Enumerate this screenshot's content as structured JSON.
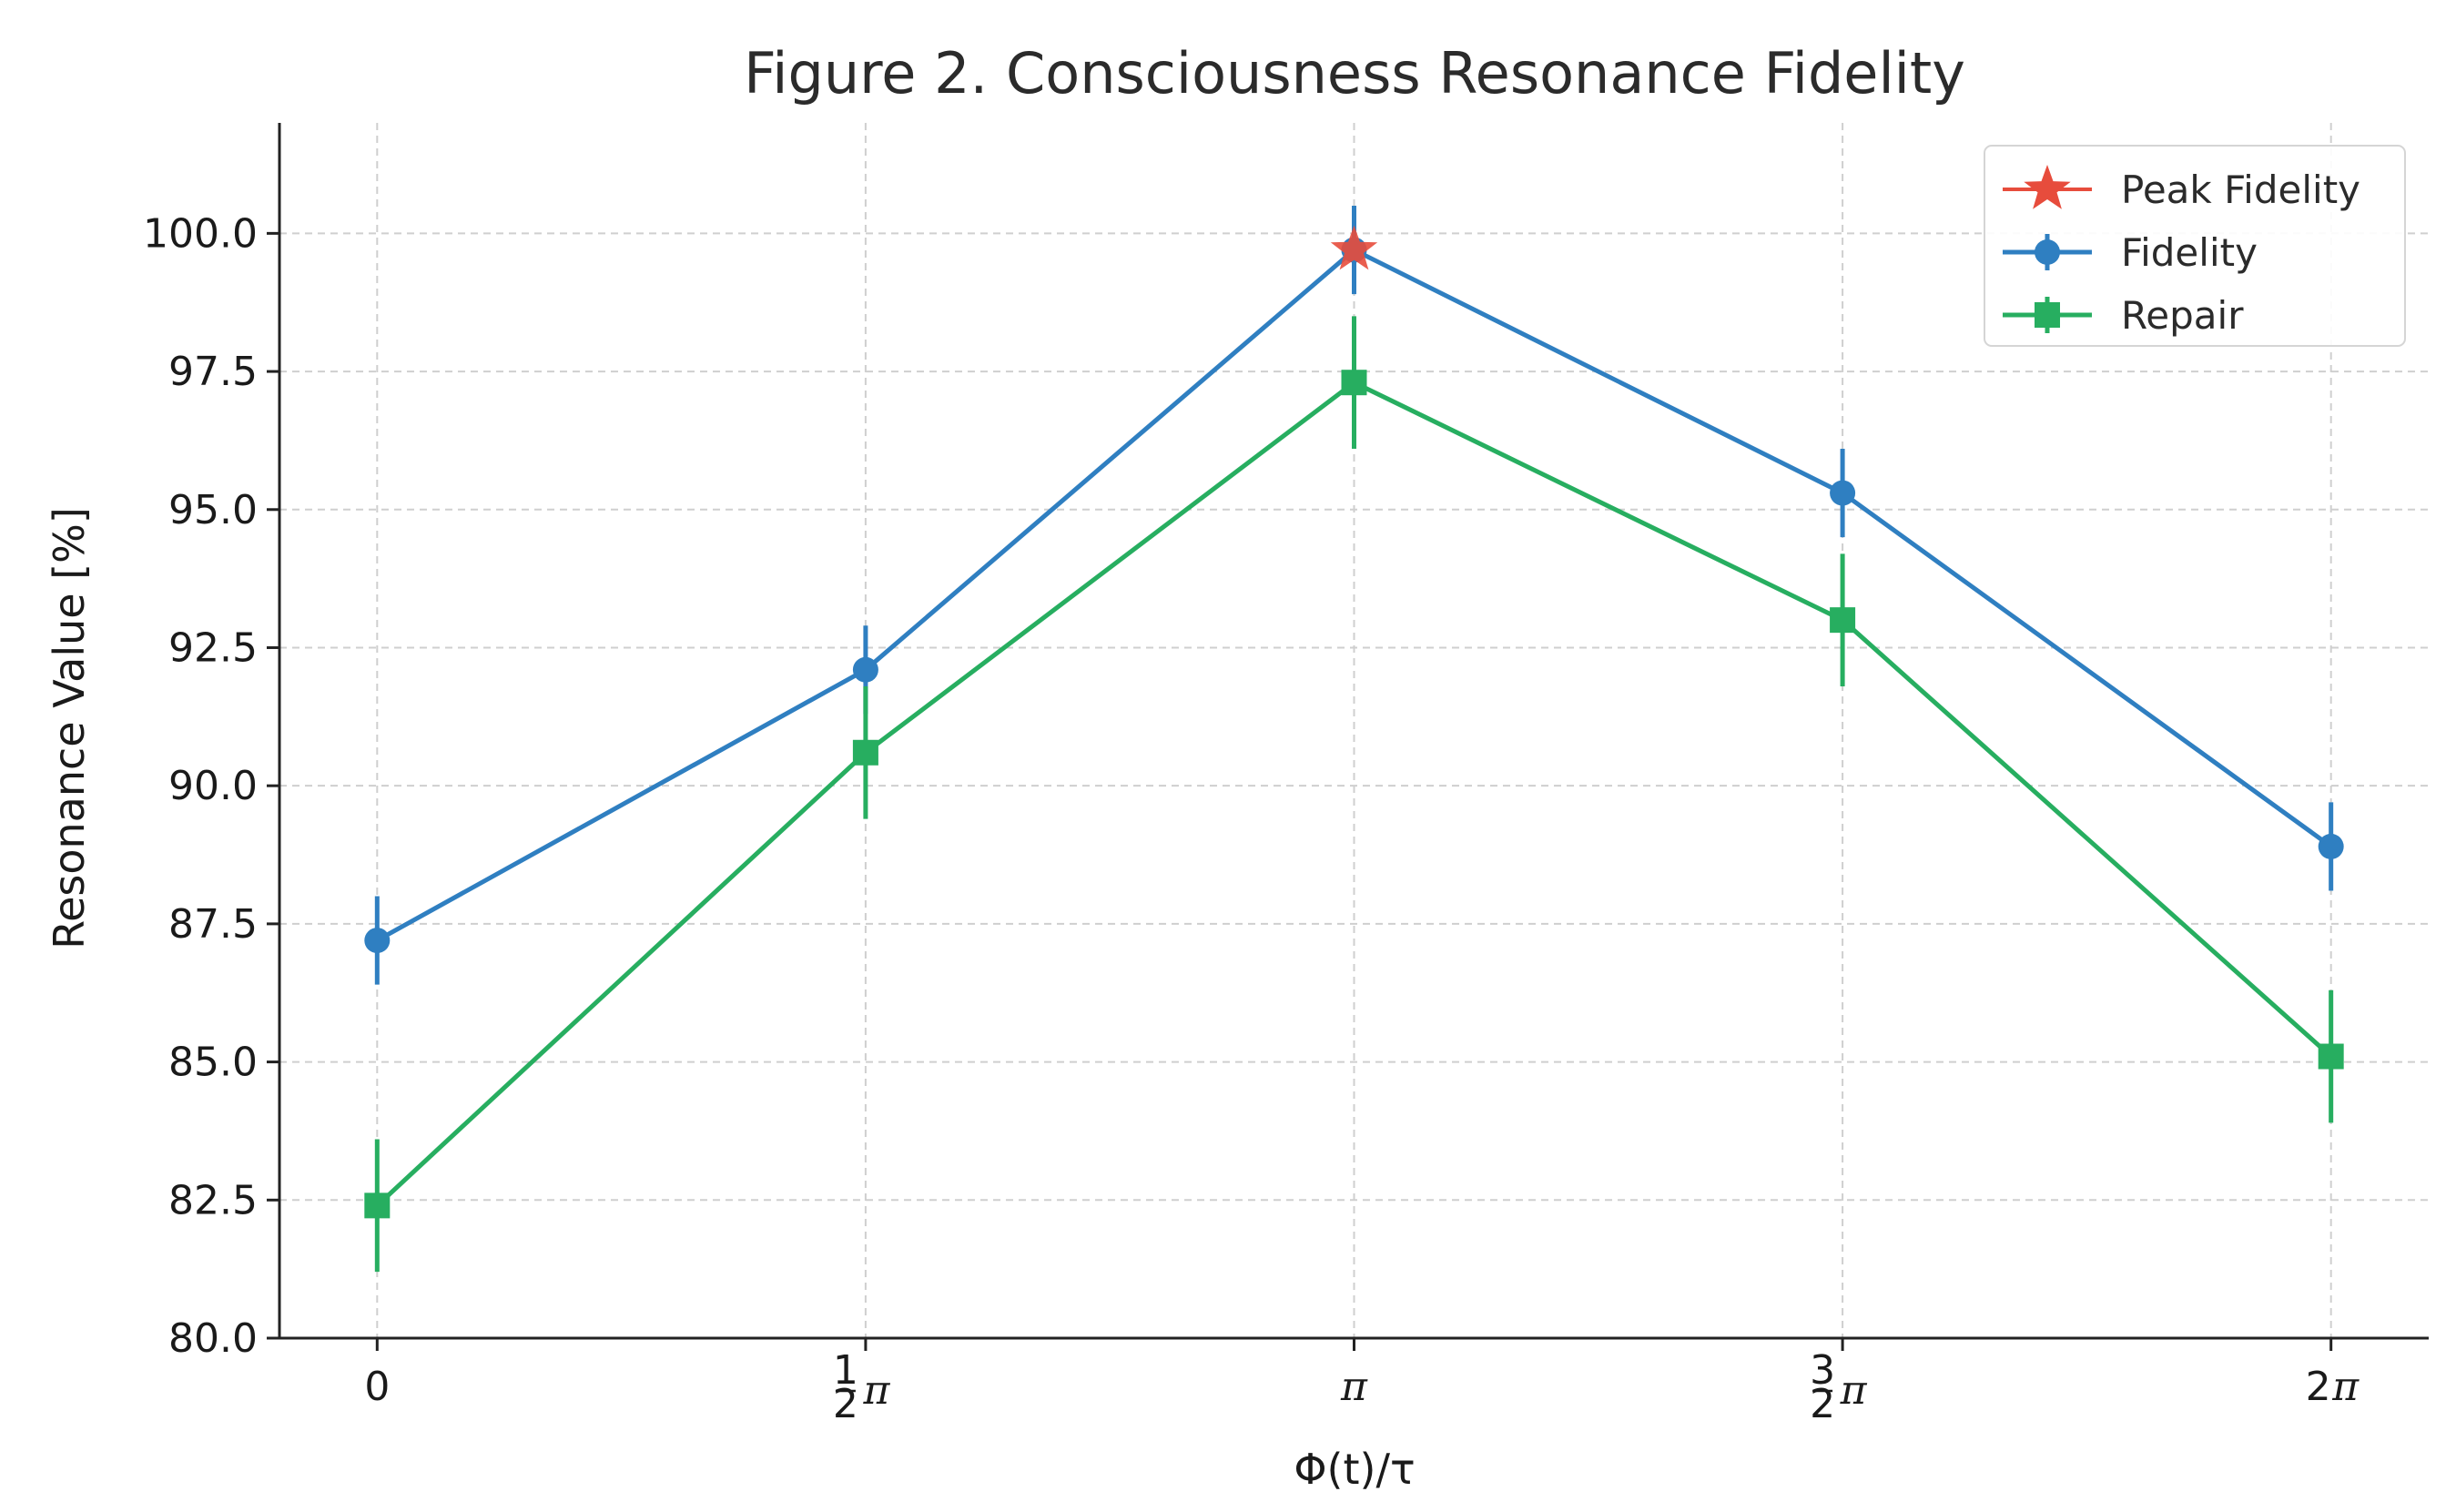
{
  "chart_data": {
    "type": "line",
    "title": "Figure 2. Consciousness Resonance Fidelity",
    "xlabel": "Φ(t)/τ",
    "ylabel": "Resonance Value [%]",
    "x": [
      0,
      0.5,
      1,
      1.5,
      2
    ],
    "x_ticks": [
      {
        "value": 0,
        "whole": "0",
        "num": "",
        "den": ""
      },
      {
        "value": 0.5,
        "whole": "",
        "num": "1",
        "den": "2"
      },
      {
        "value": 1,
        "whole": "",
        "num": "",
        "den": ""
      },
      {
        "value": 1.5,
        "whole": "",
        "num": "3",
        "den": "2"
      },
      {
        "value": 2,
        "whole": "2",
        "num": "",
        "den": ""
      }
    ],
    "x_unit_symbol": "π",
    "xlim": [
      -0.1,
      2.1
    ],
    "ylim": [
      80.0,
      102.0
    ],
    "y_ticks": [
      "80.0",
      "82.5",
      "85.0",
      "87.5",
      "90.0",
      "92.5",
      "95.0",
      "97.5",
      "100.0"
    ],
    "grid": true,
    "legend_position": "top-right",
    "series": [
      {
        "name": "Fidelity",
        "color": "#2f7fc1",
        "marker": "circle",
        "values": [
          87.2,
          92.1,
          99.7,
          95.3,
          88.9
        ],
        "errors": [
          0.8,
          0.8,
          0.8,
          0.8,
          0.8
        ]
      },
      {
        "name": "Repair",
        "color": "#27ae60",
        "marker": "square",
        "values": [
          82.4,
          90.6,
          97.3,
          93.0,
          85.1
        ],
        "errors": [
          1.2,
          1.2,
          1.2,
          1.2,
          1.2
        ]
      }
    ],
    "annotations": [
      {
        "name": "Peak Fidelity",
        "color": "#e74c3c",
        "marker": "star",
        "x": 1,
        "y": 99.7
      }
    ],
    "legend": [
      "Peak Fidelity",
      "Fidelity",
      "Repair"
    ]
  }
}
